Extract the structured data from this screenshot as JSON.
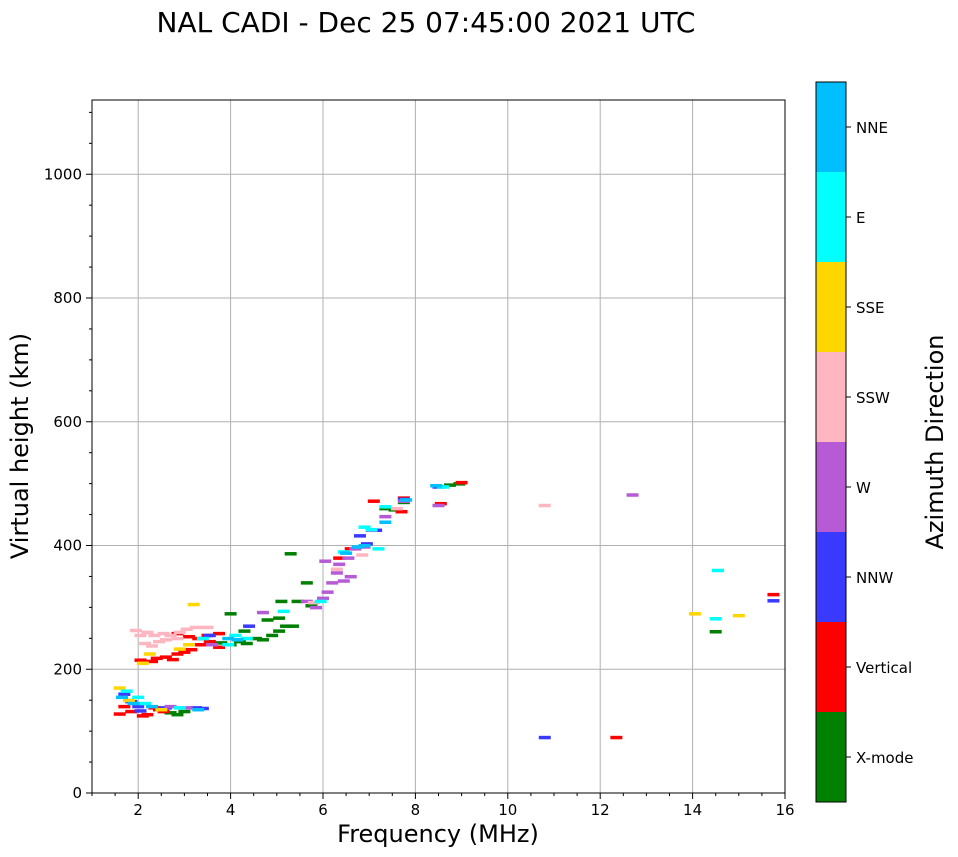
{
  "chart_data": {
    "type": "scatter",
    "title": "NAL CADI - Dec 25 07:45:00 2021 UTC",
    "xlabel": "Frequency (MHz)",
    "ylabel": "Virtual height (km)",
    "xlim": [
      1,
      16
    ],
    "ylim": [
      0,
      1120
    ],
    "xticks": [
      2,
      4,
      6,
      8,
      10,
      12,
      14,
      16
    ],
    "yticks": [
      0,
      200,
      400,
      600,
      800,
      1000
    ],
    "grid": true,
    "colorbar": {
      "label": "Azimuth Direction",
      "categories": [
        {
          "name": "X-mode",
          "color": "#008000"
        },
        {
          "name": "Vertical",
          "color": "#ff0000"
        },
        {
          "name": "NNW",
          "color": "#3a3aff"
        },
        {
          "name": "W",
          "color": "#b65ad6"
        },
        {
          "name": "SSW",
          "color": "#ffb6c1"
        },
        {
          "name": "SSE",
          "color": "#ffd700"
        },
        {
          "name": "E",
          "color": "#00ffff"
        },
        {
          "name": "NNE",
          "color": "#00bfff"
        }
      ]
    },
    "series": [
      {
        "name": "X-mode",
        "points": [
          [
            2.7,
            130
          ],
          [
            2.85,
            127
          ],
          [
            3.0,
            132
          ],
          [
            3.8,
            243
          ],
          [
            4.0,
            240
          ],
          [
            4.2,
            245
          ],
          [
            4.35,
            242
          ],
          [
            4.55,
            250
          ],
          [
            4.7,
            248
          ],
          [
            4.9,
            255
          ],
          [
            5.05,
            262
          ],
          [
            5.2,
            270
          ],
          [
            5.35,
            270
          ],
          [
            5.05,
            283
          ],
          [
            4.8,
            280
          ],
          [
            5.1,
            310
          ],
          [
            5.45,
            310
          ],
          [
            5.3,
            387
          ],
          [
            5.75,
            303
          ],
          [
            5.65,
            340
          ],
          [
            4.3,
            262
          ],
          [
            4.0,
            290
          ],
          [
            7.35,
            460
          ],
          [
            7.55,
            458
          ],
          [
            7.75,
            470
          ],
          [
            8.75,
            498
          ],
          [
            8.95,
            500
          ],
          [
            14.5,
            261
          ]
        ]
      },
      {
        "name": "Vertical",
        "points": [
          [
            1.6,
            128
          ],
          [
            1.7,
            140
          ],
          [
            1.85,
            132
          ],
          [
            2.1,
            125
          ],
          [
            2.2,
            127
          ],
          [
            2.35,
            138
          ],
          [
            2.45,
            135
          ],
          [
            2.55,
            132
          ],
          [
            2.4,
            218
          ],
          [
            2.6,
            220
          ],
          [
            2.75,
            216
          ],
          [
            2.85,
            225
          ],
          [
            3.0,
            228
          ],
          [
            3.15,
            232
          ],
          [
            3.35,
            240
          ],
          [
            3.55,
            245
          ],
          [
            3.75,
            236
          ],
          [
            2.3,
            213
          ],
          [
            2.05,
            215
          ],
          [
            2.85,
            258
          ],
          [
            3.1,
            253
          ],
          [
            3.3,
            250
          ],
          [
            3.5,
            255
          ],
          [
            3.75,
            258
          ],
          [
            6.6,
            395
          ],
          [
            6.35,
            380
          ],
          [
            7.1,
            472
          ],
          [
            7.7,
            455
          ],
          [
            7.75,
            477
          ],
          [
            8.55,
            468
          ],
          [
            9.0,
            502
          ],
          [
            12.35,
            90
          ],
          [
            15.75,
            321
          ]
        ]
      },
      {
        "name": "NNW",
        "points": [
          [
            1.7,
            160
          ],
          [
            1.85,
            148
          ],
          [
            2.0,
            140
          ],
          [
            2.05,
            133
          ],
          [
            2.6,
            138
          ],
          [
            3.25,
            138
          ],
          [
            3.4,
            137
          ],
          [
            3.55,
            255
          ],
          [
            4.4,
            270
          ],
          [
            6.8,
            416
          ],
          [
            6.95,
            403
          ],
          [
            7.15,
            425
          ],
          [
            7.75,
            475
          ],
          [
            8.5,
            495
          ],
          [
            10.8,
            90
          ],
          [
            15.75,
            311
          ]
        ]
      },
      {
        "name": "W",
        "points": [
          [
            2.7,
            140
          ],
          [
            3.05,
            138
          ],
          [
            3.6,
            240
          ],
          [
            4.7,
            292
          ],
          [
            5.65,
            310
          ],
          [
            5.85,
            300
          ],
          [
            6.0,
            315
          ],
          [
            6.1,
            325
          ],
          [
            6.2,
            340
          ],
          [
            6.45,
            343
          ],
          [
            6.6,
            350
          ],
          [
            6.35,
            370
          ],
          [
            6.55,
            380
          ],
          [
            6.3,
            356
          ],
          [
            6.05,
            375
          ],
          [
            6.7,
            395
          ],
          [
            6.9,
            398
          ],
          [
            7.05,
            425
          ],
          [
            7.35,
            447
          ],
          [
            7.75,
            472
          ],
          [
            8.5,
            465
          ],
          [
            12.7,
            482
          ]
        ]
      },
      {
        "name": "SSW",
        "points": [
          [
            1.95,
            263
          ],
          [
            2.2,
            260
          ],
          [
            2.35,
            255
          ],
          [
            2.55,
            258
          ],
          [
            2.7,
            255
          ],
          [
            2.9,
            260
          ],
          [
            3.05,
            265
          ],
          [
            3.25,
            268
          ],
          [
            2.05,
            255
          ],
          [
            2.15,
            242
          ],
          [
            2.3,
            238
          ],
          [
            2.45,
            245
          ],
          [
            2.6,
            248
          ],
          [
            2.85,
            250
          ],
          [
            3.5,
            268
          ],
          [
            5.8,
            308
          ],
          [
            6.3,
            362
          ],
          [
            6.85,
            385
          ],
          [
            7.6,
            460
          ],
          [
            10.8,
            465
          ]
        ]
      },
      {
        "name": "SSE",
        "points": [
          [
            1.8,
            150
          ],
          [
            1.6,
            170
          ],
          [
            2.1,
            210
          ],
          [
            2.25,
            225
          ],
          [
            3.2,
            305
          ],
          [
            2.9,
            233
          ],
          [
            3.1,
            240
          ],
          [
            2.5,
            135
          ],
          [
            14.05,
            290
          ],
          [
            15.0,
            287
          ]
        ]
      },
      {
        "name": "E",
        "points": [
          [
            1.75,
            165
          ],
          [
            2.0,
            155
          ],
          [
            2.15,
            145
          ],
          [
            2.9,
            138
          ],
          [
            3.4,
            250
          ],
          [
            3.95,
            240
          ],
          [
            4.1,
            255
          ],
          [
            4.35,
            250
          ],
          [
            5.15,
            294
          ],
          [
            5.95,
            310
          ],
          [
            6.45,
            390
          ],
          [
            6.9,
            430
          ],
          [
            7.05,
            426
          ],
          [
            7.2,
            395
          ],
          [
            7.35,
            463
          ],
          [
            8.6,
            495
          ],
          [
            14.55,
            360
          ],
          [
            14.5,
            282
          ]
        ]
      },
      {
        "name": "NNE",
        "points": [
          [
            1.65,
            155
          ],
          [
            1.9,
            145
          ],
          [
            2.3,
            140
          ],
          [
            3.3,
            135
          ],
          [
            3.95,
            250
          ],
          [
            4.15,
            248
          ],
          [
            6.5,
            388
          ],
          [
            6.75,
            398
          ],
          [
            6.9,
            400
          ],
          [
            7.35,
            438
          ],
          [
            7.8,
            474
          ],
          [
            8.45,
            497
          ]
        ]
      }
    ]
  }
}
